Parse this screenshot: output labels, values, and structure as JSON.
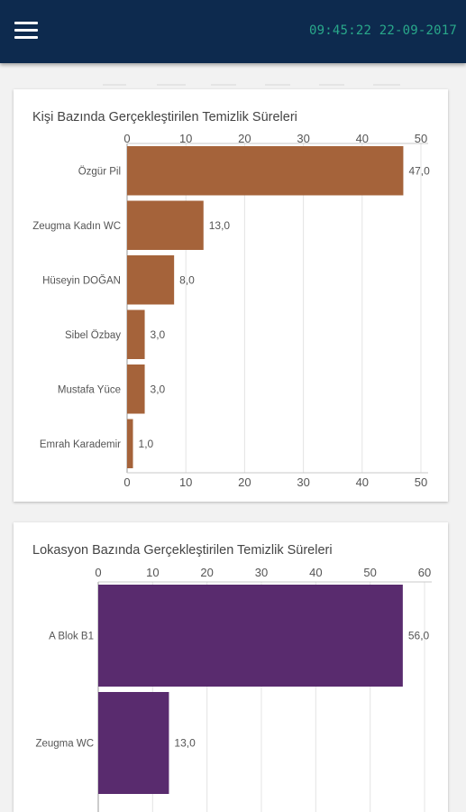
{
  "header": {
    "clock": "09:45:22 22-09-2017",
    "colors": {
      "bar": "#0d2a4e",
      "clock": "#29a88a"
    }
  },
  "chart_data": [
    {
      "type": "bar",
      "orientation": "horizontal",
      "title": "Kişi Bazında Gerçekleştirilen Temizlik Süreleri",
      "categories": [
        "Özgür Pil",
        "Zeugma Kadın WC",
        "Hüseyin DOĞAN",
        "Sibel Özbay",
        "Mustafa Yüce",
        "Emrah Karademir"
      ],
      "values": [
        47,
        13,
        8,
        3,
        3,
        1
      ],
      "value_labels": [
        "47,0",
        "13,0",
        "8,0",
        "3,0",
        "3,0",
        "1,0"
      ],
      "xlim": [
        0,
        50
      ],
      "x_ticks": [
        "0",
        "10",
        "20",
        "30",
        "40",
        "50"
      ],
      "axis_position": "top and bottom",
      "grid": true,
      "color": "#a5633a"
    },
    {
      "type": "bar",
      "orientation": "horizontal",
      "title": "Lokasyon Bazında Gerçekleştirilen Temizlik Süreleri",
      "categories": [
        "A Blok B1",
        "Zeugma WC"
      ],
      "values": [
        56,
        13
      ],
      "value_labels": [
        "56,0",
        "13,0"
      ],
      "xlim": [
        0,
        60
      ],
      "x_ticks": [
        "0",
        "10",
        "20",
        "30",
        "40",
        "50",
        "60"
      ],
      "axis_position": "top",
      "grid": true,
      "color": "#592b6e"
    }
  ]
}
